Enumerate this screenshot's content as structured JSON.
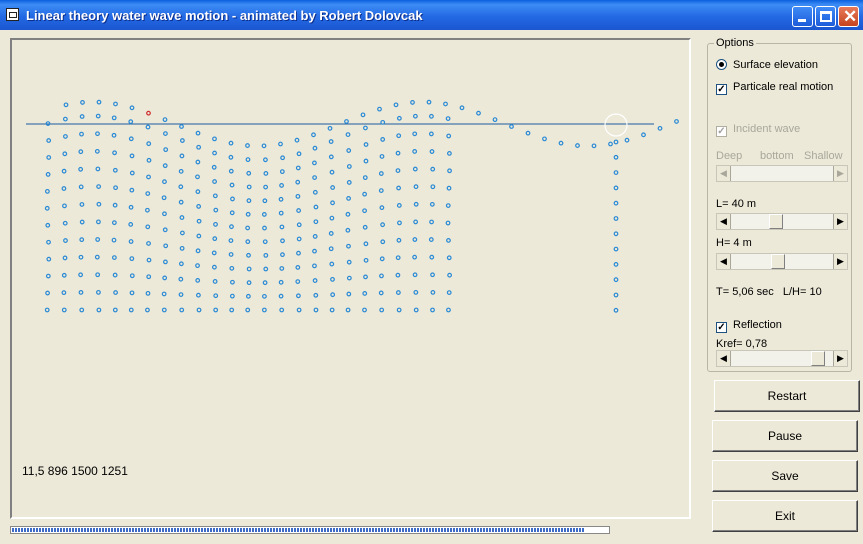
{
  "window": {
    "title": "Linear theory water wave motion - animated by Robert Dolovcak"
  },
  "canvas": {
    "readout": "11,5 896 1500 1251",
    "progress_fraction": 0.96
  },
  "options": {
    "label": "Options",
    "surface_elevation": {
      "label": "Surface elevation",
      "selected": true
    },
    "particle_motion": {
      "label": "Particale real motion",
      "checked": true
    },
    "incident_wave": {
      "label": "Incident wave",
      "checked": true,
      "enabled": false
    },
    "depth_range": {
      "left": "Deep",
      "middle": "bottom",
      "right": "Shallow",
      "enabled": false
    },
    "wavelength": {
      "label": "L= 40 m"
    },
    "height": {
      "label": "H= 4 m"
    },
    "period": {
      "label": "T= 5,06 sec",
      "ratio": "L/H= 10"
    },
    "reflection": {
      "label": "Reflection",
      "checked": true
    },
    "kref": {
      "label": "Kref= 0,78"
    }
  },
  "buttons": {
    "restart": "Restart",
    "pause": "Pause",
    "save": "Save",
    "exit": "Exit"
  },
  "colors": {
    "water_line": "#1C5A9E",
    "particle": "#2A8AD6",
    "highlight_particle": "#D03030"
  }
}
